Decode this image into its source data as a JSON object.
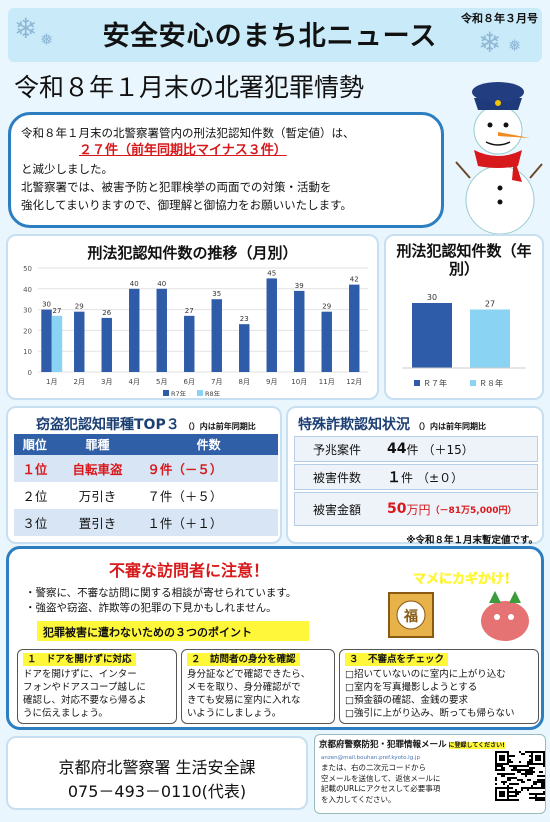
{
  "header": {
    "title": "安全安心のまち北ニュース",
    "issue": "令和８年３月号"
  },
  "main_title": "令和８年１月末の北署犯罪情勢",
  "intro": {
    "line1": "令和８年１月末の北警察署管内の刑法犯認知件数（暫定値）は、",
    "highlight": "２７件（前年同期比マイナス３件）",
    "line3": "と減少しました。",
    "line4": "北警察署では、被害予防と犯罪検挙の両面での対策・活動を",
    "line5": "強化してまいりますので、御理解と御協力をお願いいたします。"
  },
  "chart_data": [
    {
      "type": "bar",
      "title": "刑法犯認知件数の推移（月別）",
      "categories": [
        "1月",
        "2月",
        "3月",
        "4月",
        "5月",
        "6月",
        "7月",
        "8月",
        "9月",
        "10月",
        "11月",
        "12月"
      ],
      "series": [
        {
          "name": "R7年",
          "values": [
            30,
            29,
            26,
            40,
            40,
            27,
            35,
            23,
            45,
            39,
            29,
            42
          ],
          "color": "#2f5ca8"
        },
        {
          "name": "R8年",
          "values": [
            27,
            null,
            null,
            null,
            null,
            null,
            null,
            null,
            null,
            null,
            null,
            null
          ],
          "color": "#8ad3f3"
        }
      ],
      "ylim": [
        0,
        50
      ],
      "yticks": [
        0,
        10,
        20,
        30,
        40,
        50
      ],
      "grid": true,
      "legend": "bottom"
    },
    {
      "type": "bar",
      "title": "刑法犯認知件数（年別）",
      "categories": [
        "Ｒ７年",
        "Ｒ８年"
      ],
      "values": [
        30,
        27
      ],
      "colors": [
        "#2f5ca8",
        "#8ad3f3"
      ],
      "legend": "bottom"
    }
  ],
  "theft_top3": {
    "title": "窃盗犯認知罪種TOP３",
    "note": "（）内は前年同期比",
    "headers": [
      "順位",
      "罪種",
      "件数"
    ],
    "rows": [
      {
        "rank": "１位",
        "type": "自転車盗",
        "count": "９件（－５）"
      },
      {
        "rank": "２位",
        "type": "万引き",
        "count": "７件（＋５）"
      },
      {
        "rank": "３位",
        "type": "置引き",
        "count": "１件（＋１）"
      }
    ]
  },
  "scam": {
    "title": "特殊詐欺認知状況",
    "note": "（）内は前年同期比",
    "rows": [
      {
        "label": "予兆案件",
        "value": "44",
        "unit": "件",
        "diff": "（＋15）"
      },
      {
        "label": "被害件数",
        "value": "１",
        "unit": "件",
        "diff": "（±０）"
      },
      {
        "label": "被害金額",
        "value": "50",
        "unit": "万円",
        "diff": "（－81万5,000円）"
      }
    ],
    "footnote": "※令和８年１月末暫定値です。"
  },
  "warning": {
    "title": "不審な訪問者に注意！",
    "bullet1": "・警察に、不審な訪問に関する相談が寄せられています。",
    "bullet2": "・強盗や窃盗、詐欺等の犯罪の下見かもしれません。",
    "points": "犯罪被害に遭わないための３つのポイント",
    "sign": "マメにカギかけ！",
    "box_label": "福",
    "tips": [
      {
        "title": "１　ドアを開けずに対応",
        "lines": [
          "ドアを開けずに、インター",
          "フォンやドアスコープ越しに",
          "確認し、対応不要なら帰るよ",
          "うに伝えましょう。"
        ]
      },
      {
        "title": "２　訪問者の身分を確認",
        "lines": [
          "身分証などで確認できたら、",
          "メモを取り、身分確認がで",
          "きても安易に室内に入れな",
          "いようにしましょう。"
        ]
      },
      {
        "title": "３　不審点をチェック",
        "lines": [
          "□招いていないのに室内に上がり込む",
          "□室内を写真撮影しようとする",
          "□預金額の確認、金銭の要求",
          "□強引に上がり込み、断っても帰らない"
        ]
      }
    ]
  },
  "footer": {
    "name": "京都府北警察署 生活安全課",
    "phone": "075－493－0110(代表)"
  },
  "mail": {
    "title": "京都府警察防犯・犯罪情報メール",
    "tag": "に登録してください!",
    "address": "anzen@mail.bouhan.pref.kyoto.lg.jp",
    "lines": [
      "または、右の二次元コードから",
      "空メールを送信して、返信メールに",
      "記載のURLにアクセスして必要事項",
      "を入力してください。"
    ]
  }
}
